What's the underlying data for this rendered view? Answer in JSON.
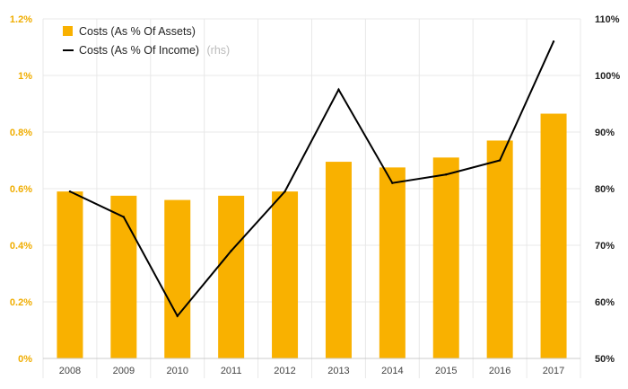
{
  "chart_data": {
    "type": "bar+line",
    "categories": [
      "2008",
      "2009",
      "2010",
      "2011",
      "2012",
      "2013",
      "2014",
      "2015",
      "2016",
      "2017"
    ],
    "series": [
      {
        "name": "Costs (As % Of Assets)",
        "type": "bar",
        "axis": "left",
        "unit": "%",
        "color": "#f9b100",
        "values": [
          0.59,
          0.575,
          0.56,
          0.575,
          0.59,
          0.695,
          0.675,
          0.71,
          0.77,
          0.865
        ]
      },
      {
        "name": "Costs (As % Of Income)",
        "suffix": "(rhs)",
        "type": "line",
        "axis": "right",
        "unit": "%",
        "color": "#000000",
        "values": [
          79.5,
          75.0,
          57.5,
          69.0,
          79.5,
          97.5,
          81.0,
          82.5,
          85.0,
          106.0
        ]
      }
    ],
    "y_left": {
      "min": 0,
      "max": 1.2,
      "ticks": [
        "0%",
        "0.2%",
        "0.4%",
        "0.6%",
        "0.8%",
        "1%",
        "1.2%"
      ],
      "tick_color": "#f0ad00"
    },
    "y_right": {
      "min": 50,
      "max": 110,
      "ticks": [
        "50%",
        "60%",
        "70%",
        "80%",
        "90%",
        "100%",
        "110%"
      ],
      "tick_color": "#222222"
    },
    "grid": true,
    "legend_position": "top-left",
    "gridline_color": "#e8e8e8",
    "background": "#ffffff"
  }
}
